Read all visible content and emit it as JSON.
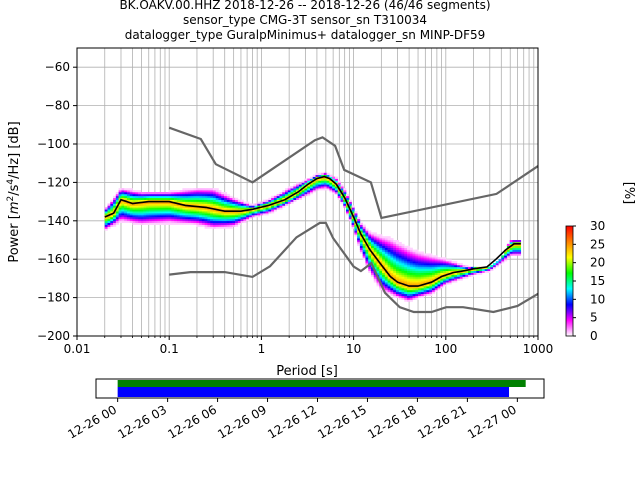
{
  "title_lines": [
    "BK.OAKV.00.HHZ   2018-12-26 -- 2018-12-26  (46/46 segments)",
    "sensor_type CMG-3T sensor_sn T310034",
    "datalogger_type GuralpMinimus+ datalogger_sn MINP-DF59"
  ],
  "colors": {
    "noise_model": "#666666",
    "mode_line": "#000000",
    "grid": "#b0b0b0",
    "coverage_top": "#008000",
    "coverage_bottom": "#0000ff"
  },
  "chart_data": [
    {
      "type": "heatmap",
      "title": "",
      "xlabel": "Period [s]",
      "ylabel": "Power [m²/s⁴/Hz] [dB]",
      "ylabel_parts": {
        "pre": "Power [",
        "m": "m",
        "e2": "2",
        "s4": "/s",
        "e4": "4",
        "hz": "/Hz] [dB]"
      },
      "x_scale": "log",
      "xlim": [
        0.01,
        1000
      ],
      "ylim": [
        -200,
        -50
      ],
      "x_ticks": [
        {
          "value": 0.01,
          "label": "0.01"
        },
        {
          "value": 0.1,
          "label": "0.1"
        },
        {
          "value": 1,
          "label": "1"
        },
        {
          "value": 10,
          "label": "10"
        },
        {
          "value": 100,
          "label": "100"
        },
        {
          "value": 1000,
          "label": "1000"
        }
      ],
      "y_ticks": [
        {
          "value": -60,
          "label": "−60"
        },
        {
          "value": -80,
          "label": "−80"
        },
        {
          "value": -100,
          "label": "−100"
        },
        {
          "value": -120,
          "label": "−120"
        },
        {
          "value": -140,
          "label": "−140"
        },
        {
          "value": -160,
          "label": "−160"
        },
        {
          "value": -180,
          "label": "−180"
        },
        {
          "value": -200,
          "label": "−200"
        }
      ],
      "grid": true,
      "series": [
        {
          "role": "new_high_noise_model",
          "x": [
            0.1,
            0.22,
            0.32,
            0.8,
            3.8,
            4.6,
            6.3,
            7.9,
            15.4,
            20,
            354.8,
            1000
          ],
          "y": [
            -91.5,
            -97.4,
            -110.5,
            -120,
            -98,
            -96.5,
            -101,
            -113.5,
            -120,
            -138.5,
            -126,
            -111.5
          ]
        },
        {
          "role": "new_low_noise_model",
          "x": [
            0.1,
            0.17,
            0.4,
            0.8,
            1.24,
            2.4,
            4.3,
            5,
            6,
            10,
            12,
            15.6,
            21.9,
            31.6,
            45,
            70,
            101,
            154,
            328,
            600,
            1000
          ],
          "y": [
            -168,
            -166.7,
            -166.7,
            -169.2,
            -163.7,
            -148.6,
            -141.1,
            -141.1,
            -149,
            -163.8,
            -166.2,
            -162.1,
            -177.5,
            -185,
            -187.5,
            -187.5,
            -185,
            -185,
            -187.5,
            -184.4,
            -178
          ]
        },
        {
          "role": "mode",
          "x": [
            0.02,
            0.025,
            0.03,
            0.04,
            0.06,
            0.1,
            0.15,
            0.25,
            0.4,
            0.6,
            0.8,
            1.2,
            1.8,
            2.5,
            3.2,
            4,
            4.8,
            5.5,
            6.5,
            8,
            10,
            12,
            15,
            20,
            25,
            30,
            40,
            50,
            70,
            90,
            120,
            160,
            200,
            280,
            350,
            450,
            550,
            650
          ],
          "y": [
            -138,
            -136,
            -129,
            -131,
            -130,
            -130,
            -132,
            -133,
            -135,
            -135,
            -134,
            -132,
            -129,
            -125,
            -121,
            -118,
            -117,
            -118,
            -121,
            -128,
            -138,
            -147,
            -155,
            -163,
            -169,
            -172,
            -174,
            -174,
            -172,
            -169,
            -167,
            -166,
            -165,
            -164,
            -160,
            -155,
            -152,
            -152
          ]
        }
      ],
      "spread": {
        "x": [
          0.02,
          0.03,
          0.05,
          0.1,
          0.2,
          0.3,
          0.5,
          0.8,
          1.2,
          2,
          3,
          4,
          5,
          6.5,
          8,
          10,
          12,
          15,
          20,
          25,
          30,
          40,
          50,
          70,
          100,
          150,
          200,
          300,
          400,
          500,
          650
        ],
        "upper": [
          -134,
          -123,
          -125,
          -125,
          -123,
          -123,
          -128,
          -132,
          -129,
          -123,
          -119,
          -116,
          -115,
          -118,
          -124,
          -133,
          -141,
          -146,
          -148,
          -149,
          -151,
          -154,
          -156,
          -158,
          -160,
          -163,
          -165,
          -164,
          -160,
          -150,
          -150
        ],
        "lower": [
          -145,
          -140,
          -142,
          -141,
          -142,
          -144,
          -143,
          -138,
          -136,
          -131,
          -127,
          -124,
          -123,
          -126,
          -133,
          -144,
          -156,
          -167,
          -176,
          -178,
          -180,
          -182,
          -180,
          -178,
          -173,
          -170,
          -168,
          -166,
          -162,
          -158,
          -158
        ]
      },
      "colorbar": {
        "label": "[%]",
        "range": [
          0,
          30
        ],
        "ticks": [
          {
            "value": 0,
            "label": "0"
          },
          {
            "value": 5,
            "label": "5"
          },
          {
            "value": 10,
            "label": "10"
          },
          {
            "value": 15,
            "label": "15"
          },
          {
            "value": 20,
            "label": "20"
          },
          {
            "value": 25,
            "label": "25"
          },
          {
            "value": 30,
            "label": "30"
          }
        ],
        "colors": [
          "#ffffff",
          "#ff00ff",
          "#0000ff",
          "#00ffff",
          "#00ff00",
          "#ffff00",
          "#ff8000",
          "#ff0000"
        ]
      }
    },
    {
      "type": "bar",
      "title": "",
      "role": "data_coverage",
      "x_ticks": [
        "12-26 00",
        "12-26 03",
        "12-26 06",
        "12-26 09",
        "12-26 12",
        "12-26 15",
        "12-26 18",
        "12-26 21",
        "12-27 00"
      ],
      "x_range_hours": [
        -1.3,
        25.6
      ],
      "series": [
        {
          "role": "top",
          "start_hour": 0,
          "end_hour": 24.5
        },
        {
          "role": "bottom",
          "start_hour": 0,
          "end_hour": 23.5
        }
      ]
    }
  ]
}
